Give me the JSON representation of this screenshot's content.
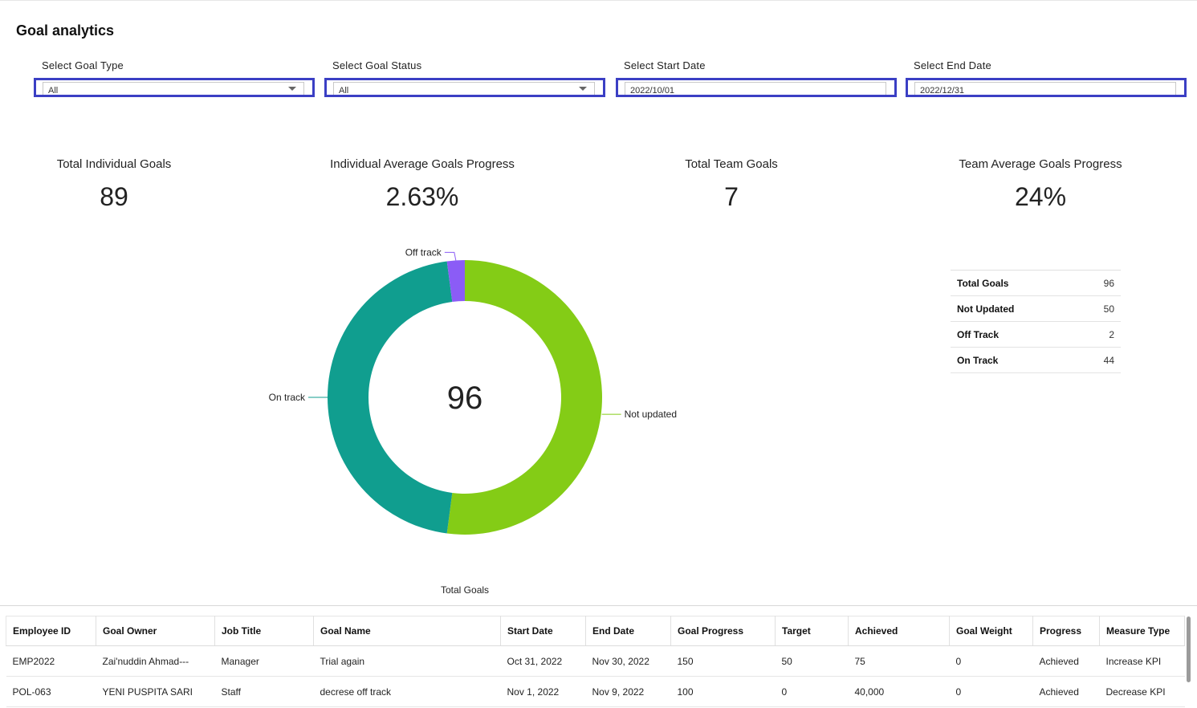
{
  "page": {
    "title": "Goal analytics"
  },
  "filters": [
    {
      "label": "Select Goal Type",
      "value": "All",
      "dropdown": true
    },
    {
      "label": "Select Goal Status",
      "value": "All",
      "dropdown": true
    },
    {
      "label": "Select Start Date",
      "value": "2022/10/01",
      "dropdown": false
    },
    {
      "label": "Select End Date",
      "value": "2022/12/31",
      "dropdown": false
    }
  ],
  "kpis": [
    {
      "label": "Total Individual Goals",
      "value": "89"
    },
    {
      "label": "Individual Average Goals Progress",
      "value": "2.63%"
    },
    {
      "label": "Total Team Goals",
      "value": "7"
    },
    {
      "label": "Team Average Goals Progress",
      "value": "24%"
    }
  ],
  "chart_data": {
    "type": "pie",
    "donut": true,
    "center_label": "96",
    "caption": "Total Goals",
    "slices": [
      {
        "label": "Not updated",
        "value": 50,
        "color": "#84cc16"
      },
      {
        "label": "On track",
        "value": 44,
        "color": "#109e8f"
      },
      {
        "label": "Off track",
        "value": 2,
        "color": "#8b5cf6"
      }
    ]
  },
  "summary": [
    {
      "label": "Total Goals",
      "value": "96"
    },
    {
      "label": "Not Updated",
      "value": "50"
    },
    {
      "label": "Off Track",
      "value": "2"
    },
    {
      "label": "On Track",
      "value": "44"
    }
  ],
  "table": {
    "columns": [
      "Employee ID",
      "Goal Owner",
      "Job Title",
      "Goal Name",
      "Start Date",
      "End Date",
      "Goal Progress",
      "Target",
      "Achieved",
      "Goal Weight",
      "Progress",
      "Measure Type"
    ],
    "rows": [
      [
        "EMP2022",
        "Zai'nuddin Ahmad---",
        "Manager",
        "Trial again",
        "Oct 31, 2022",
        "Nov 30, 2022",
        "150",
        "50",
        "75",
        "0",
        "Achieved",
        "Increase KPI"
      ],
      [
        "POL-063",
        "YENI PUSPITA SARI",
        "Staff",
        "decrese off track",
        "Nov 1, 2022",
        "Nov 9, 2022",
        "100",
        "0",
        "40,000",
        "0",
        "Achieved",
        "Decrease KPI"
      ]
    ]
  }
}
